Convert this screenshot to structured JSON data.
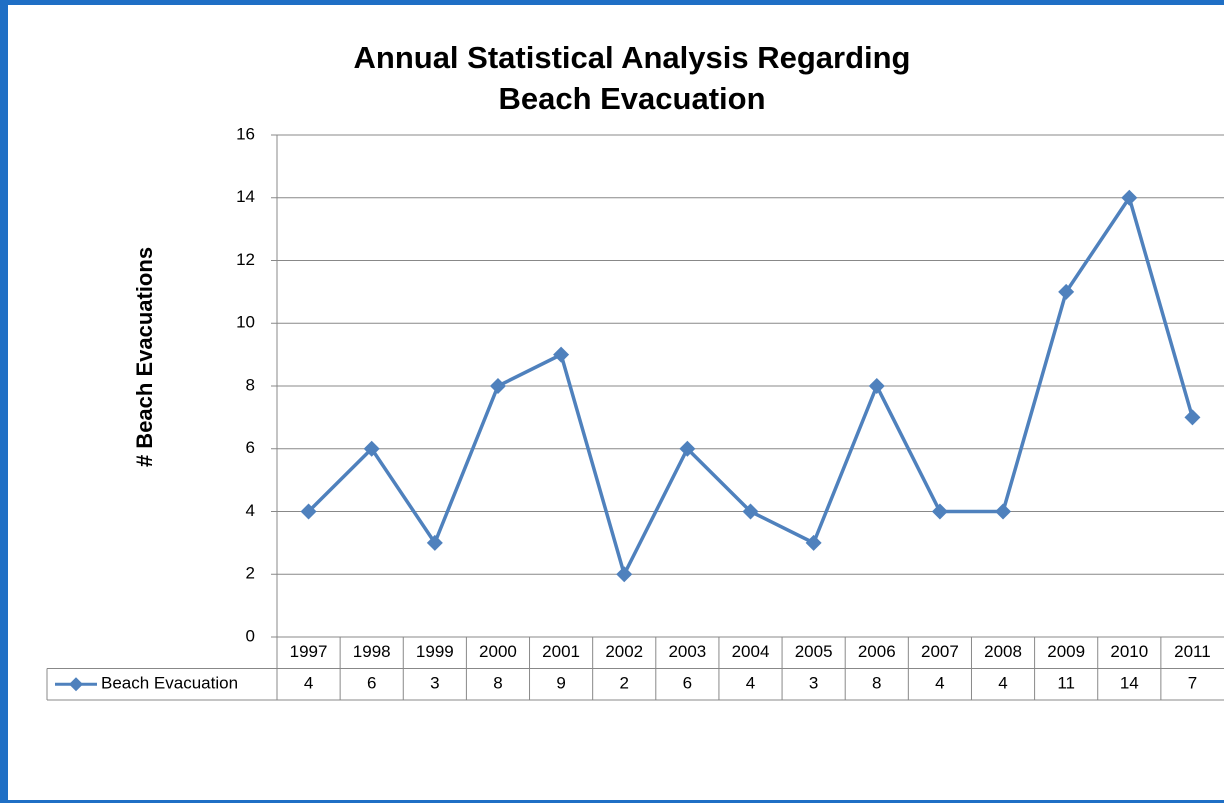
{
  "chart_data": {
    "type": "line",
    "title": [
      "Annual Statistical Analysis Regarding",
      "Beach Evacuation"
    ],
    "ylabel": "# Beach Evacuations",
    "categories": [
      "1997",
      "1998",
      "1999",
      "2000",
      "2001",
      "2002",
      "2003",
      "2004",
      "2005",
      "2006",
      "2007",
      "2008",
      "2009",
      "2010",
      "2011"
    ],
    "series": [
      {
        "name": "Beach Evacuation",
        "color": "#4f81bd",
        "values": [
          4,
          6,
          3,
          8,
          9,
          2,
          6,
          4,
          3,
          8,
          4,
          4,
          11,
          14,
          7
        ]
      }
    ],
    "ylim": [
      0,
      16
    ],
    "yticks": [
      0,
      2,
      4,
      6,
      8,
      10,
      12,
      14,
      16
    ],
    "grid": true,
    "data_table": true
  }
}
